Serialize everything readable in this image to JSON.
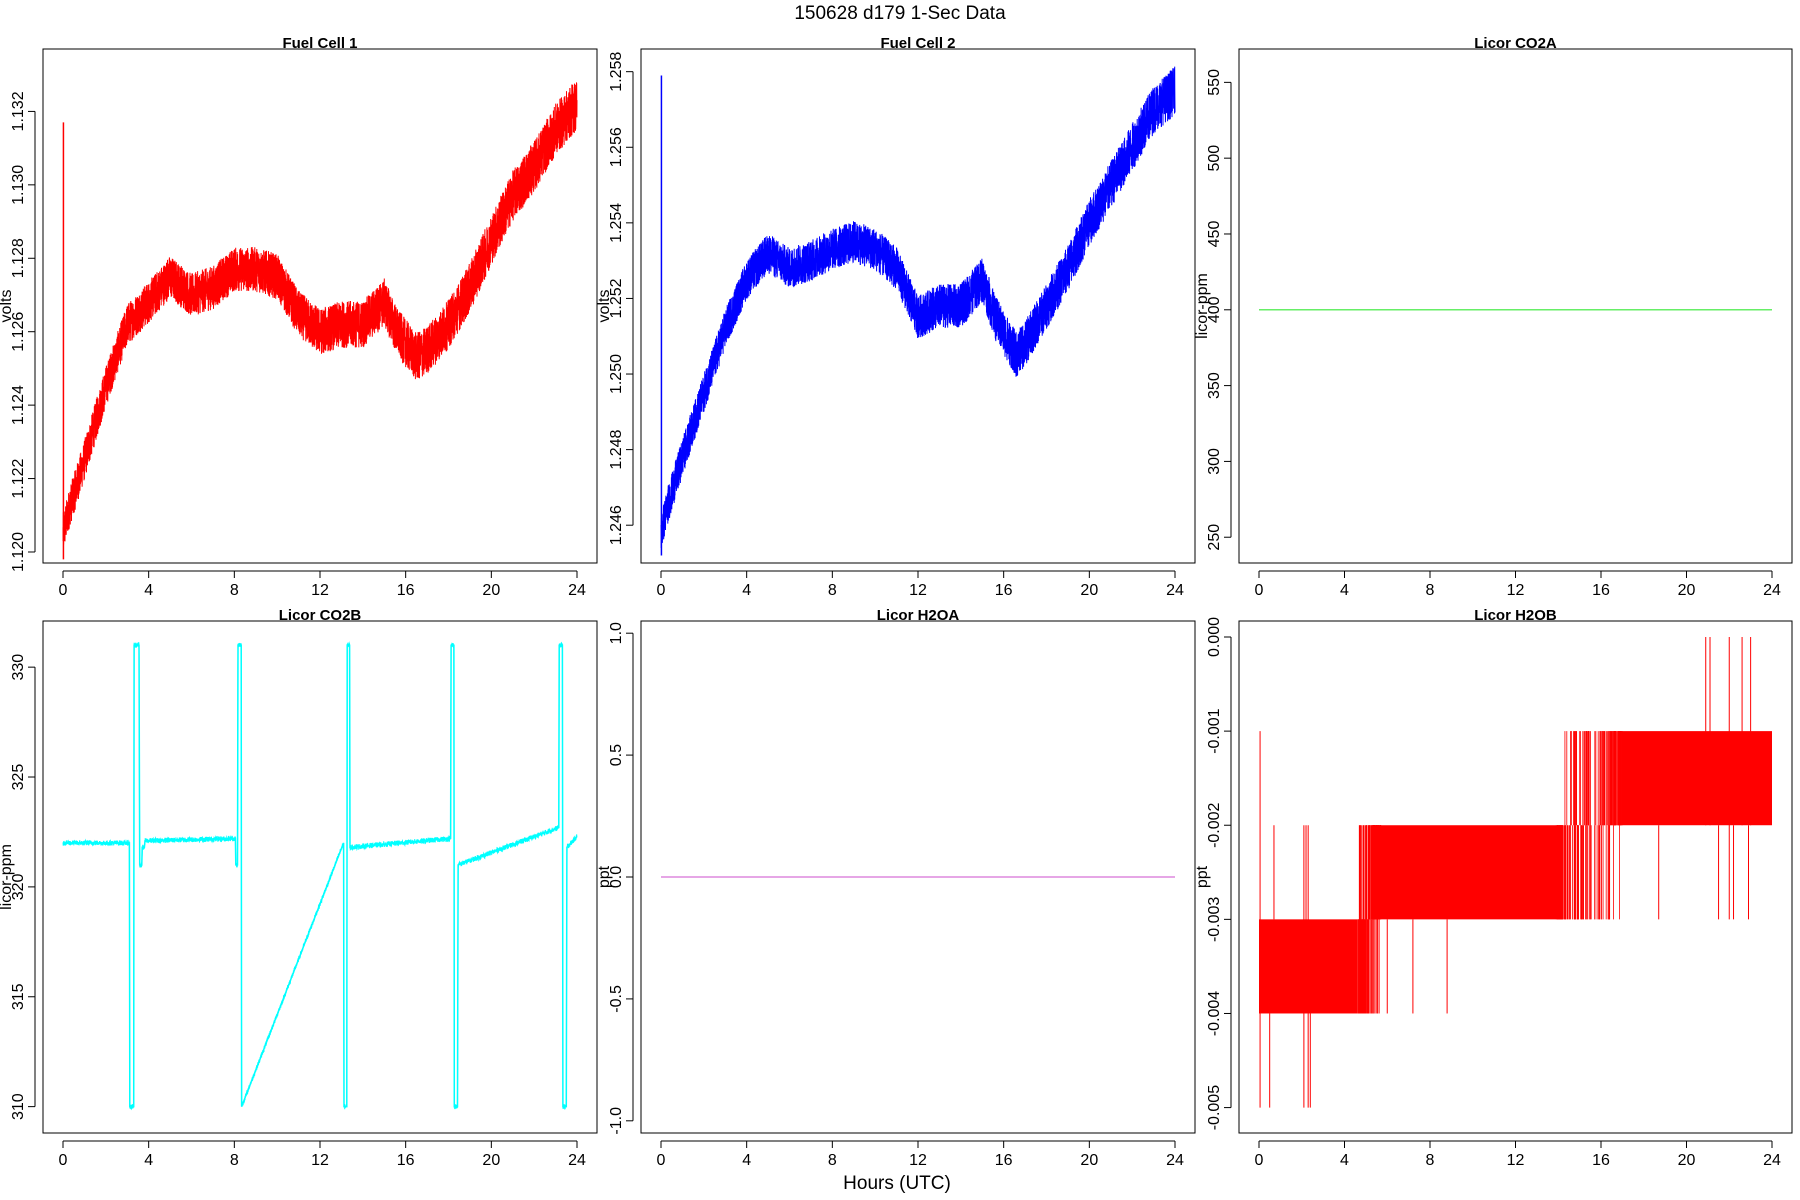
{
  "figure": {
    "suptitle": "150628   d179   1-Sec Data",
    "xlabel": "Hours (UTC)"
  },
  "chart_data": [
    {
      "type": "line",
      "title": "Fuel Cell 1",
      "ylabel": "volts",
      "color": "#ff0000",
      "xlim": [
        0,
        24
      ],
      "ylim": [
        1.1197,
        1.1337
      ],
      "xticks": [
        0,
        4,
        8,
        12,
        16,
        20,
        24
      ],
      "yticks": [
        1.12,
        1.122,
        1.124,
        1.126,
        1.128,
        1.13,
        1.132
      ],
      "ytick_labels": [
        "1.120",
        "1.122",
        "1.124",
        "1.126",
        "1.128",
        "1.130",
        "1.132"
      ],
      "noise": 0.00055,
      "spikes": [
        {
          "x": 0.02,
          "y0": 1.1198,
          "y1": 1.1317
        }
      ],
      "x": [
        0,
        0.3,
        1,
        2,
        3,
        4,
        5,
        6,
        7,
        8,
        9,
        10,
        11,
        12,
        13,
        14,
        15,
        15.6,
        16.5,
        17,
        18,
        19,
        20,
        21,
        22,
        23,
        24
      ],
      "y": [
        1.1205,
        1.1212,
        1.1225,
        1.1245,
        1.1262,
        1.1268,
        1.1275,
        1.127,
        1.1272,
        1.1277,
        1.1277,
        1.1275,
        1.1265,
        1.126,
        1.1262,
        1.1262,
        1.1268,
        1.126,
        1.1253,
        1.1255,
        1.1262,
        1.1272,
        1.1285,
        1.1297,
        1.1305,
        1.1315,
        1.1322
      ]
    },
    {
      "type": "line",
      "title": "Fuel Cell 2",
      "ylabel": "volts",
      "color": "#0000ff",
      "xlim": [
        0,
        24
      ],
      "ylim": [
        1.245,
        1.2586
      ],
      "xticks": [
        0,
        4,
        8,
        12,
        16,
        20,
        24
      ],
      "yticks": [
        1.246,
        1.248,
        1.25,
        1.252,
        1.254,
        1.256,
        1.258
      ],
      "ytick_labels": [
        "1.246",
        "1.248",
        "1.250",
        "1.252",
        "1.254",
        "1.256",
        "1.258"
      ],
      "noise": 0.0005,
      "spikes": [
        {
          "x": 0.02,
          "y0": 1.2452,
          "y1": 1.2579
        }
      ],
      "x": [
        0,
        0.3,
        1,
        2,
        3,
        4,
        5,
        6,
        7,
        8,
        9,
        10,
        11,
        12,
        13,
        14,
        15,
        15.6,
        16.6,
        17,
        18,
        19,
        20,
        21,
        22,
        23,
        24
      ],
      "y": [
        1.2458,
        1.2465,
        1.2478,
        1.2495,
        1.2512,
        1.2525,
        1.2532,
        1.2528,
        1.253,
        1.2533,
        1.2535,
        1.2533,
        1.2528,
        1.2515,
        1.2518,
        1.2518,
        1.2525,
        1.2515,
        1.2505,
        1.2508,
        1.2518,
        1.2528,
        1.254,
        1.255,
        1.256,
        1.257,
        1.2575
      ]
    },
    {
      "type": "line",
      "title": "Licor CO2A",
      "ylabel": "licor-ppm",
      "color": "#66ee66",
      "xlim": [
        0,
        24
      ],
      "ylim": [
        233,
        572
      ],
      "xticks": [
        0,
        4,
        8,
        12,
        16,
        20,
        24
      ],
      "yticks": [
        250,
        300,
        350,
        400,
        450,
        500,
        550
      ],
      "ytick_labels": [
        "250",
        "300",
        "350",
        "400",
        "450",
        "500",
        "550"
      ],
      "noise": 0,
      "spikes": [],
      "x": [
        0,
        24
      ],
      "y": [
        400,
        400
      ]
    },
    {
      "type": "line",
      "title": "Licor CO2B",
      "ylabel": "licor-ppm",
      "color": "#00ffff",
      "xlim": [
        0,
        24
      ],
      "ylim": [
        308.8,
        332.1
      ],
      "xticks": [
        0,
        4,
        8,
        12,
        16,
        20,
        24
      ],
      "yticks": [
        310,
        315,
        320,
        325,
        330
      ],
      "ytick_labels": [
        "310",
        "315",
        "320",
        "325",
        "330"
      ],
      "noise": 0.12,
      "spikes": [],
      "x": [
        0,
        3.1,
        3.12,
        3.3,
        3.32,
        3.55,
        3.58,
        3.68,
        3.7,
        3.8,
        3.83,
        8.05,
        8.07,
        8.15,
        8.17,
        8.32,
        8.34,
        13.1,
        13.12,
        13.25,
        13.27,
        13.38,
        13.4,
        18.1,
        18.12,
        18.25,
        18.27,
        18.42,
        18.45,
        23.15,
        23.17,
        23.32,
        23.34,
        23.5,
        23.53,
        24
      ],
      "y": [
        322.0,
        322.0,
        310.0,
        310.0,
        331.0,
        331.0,
        321.0,
        321.0,
        321.8,
        321.8,
        322.1,
        322.2,
        321.0,
        321.0,
        331.0,
        331.0,
        310.0,
        322.0,
        310.0,
        310.0,
        331.0,
        331.0,
        321.8,
        322.2,
        331.0,
        331.0,
        310.0,
        310.0,
        321.0,
        322.7,
        331.0,
        331.0,
        310.0,
        310.0,
        321.8,
        322.3
      ]
    },
    {
      "type": "line",
      "title": "Licor H2OA",
      "ylabel": "ppt",
      "color": "#dd88dd",
      "xlim": [
        0,
        24
      ],
      "ylim": [
        -1.05,
        1.05
      ],
      "xticks": [
        0,
        4,
        8,
        12,
        16,
        20,
        24
      ],
      "yticks": [
        -1.0,
        -0.5,
        0.0,
        0.5,
        1.0
      ],
      "ytick_labels": [
        "-1.0",
        "-0.5",
        "0.0",
        "0.5",
        "1.0"
      ],
      "noise": 0,
      "spikes": [],
      "x": [
        0,
        24
      ],
      "y": [
        0,
        0
      ]
    },
    {
      "type": "line",
      "title": "Licor H2OB",
      "ylabel": "ppt",
      "color": "#ff0000",
      "xlim": [
        0,
        24
      ],
      "ylim": [
        -0.00527,
        0.00017
      ],
      "xticks": [
        0,
        4,
        8,
        12,
        16,
        20,
        24
      ],
      "yticks": [
        -0.005,
        -0.004,
        -0.003,
        -0.002,
        -0.001,
        0.0
      ],
      "ytick_labels": [
        "-0.005",
        "-0.004",
        "-0.003",
        "-0.002",
        "-0.001",
        "0.000"
      ],
      "noise": 0,
      "spikes": [],
      "bands": [
        {
          "x0": 0,
          "x1": 4.6,
          "y0": -0.004,
          "y1": -0.003
        },
        {
          "x0": 5.7,
          "x1": 14.2,
          "y0": -0.003,
          "y1": -0.002
        },
        {
          "x0": 17.0,
          "x1": 24,
          "y0": -0.002,
          "y1": -0.001
        }
      ],
      "transitions": [
        [
          4.6,
          5.7,
          -0.004,
          -0.002
        ],
        [
          13.9,
          17.0,
          -0.003,
          -0.001
        ]
      ],
      "outliers": [
        {
          "x": 0.05,
          "y0": -0.005,
          "y1": -0.001
        },
        {
          "x": 0.5,
          "y0": -0.005,
          "y1": -0.004
        },
        {
          "x": 0.7,
          "y0": -0.003,
          "y1": -0.002
        },
        {
          "x": 2.1,
          "y0": -0.005,
          "y1": -0.002
        },
        {
          "x": 2.3,
          "y0": -0.005,
          "y1": -0.002
        },
        {
          "x": 2.4,
          "y0": -0.005,
          "y1": -0.004
        },
        {
          "x": 2.2,
          "y0": -0.004,
          "y1": -0.002
        },
        {
          "x": 6.0,
          "y0": -0.004,
          "y1": -0.003
        },
        {
          "x": 7.2,
          "y0": -0.004,
          "y1": -0.003
        },
        {
          "x": 8.8,
          "y0": -0.004,
          "y1": -0.003
        },
        {
          "x": 14.8,
          "y0": -0.002,
          "y1": -0.001
        },
        {
          "x": 15.5,
          "y0": -0.003,
          "y1": -0.001
        },
        {
          "x": 16.4,
          "y0": -0.003,
          "y1": -0.002
        },
        {
          "x": 18.7,
          "y0": -0.003,
          "y1": -0.002
        },
        {
          "x": 20.9,
          "y0": -0.002,
          "y1": 0.0
        },
        {
          "x": 21.1,
          "y0": -0.002,
          "y1": 0.0
        },
        {
          "x": 21.5,
          "y0": -0.003,
          "y1": -0.002
        },
        {
          "x": 22.0,
          "y0": -0.003,
          "y1": 0.0
        },
        {
          "x": 22.2,
          "y0": -0.003,
          "y1": -0.002
        },
        {
          "x": 22.6,
          "y0": -0.002,
          "y1": 0.0
        },
        {
          "x": 22.9,
          "y0": -0.003,
          "y1": -0.002
        },
        {
          "x": 23.0,
          "y0": -0.002,
          "y1": 0.0
        }
      ]
    }
  ]
}
